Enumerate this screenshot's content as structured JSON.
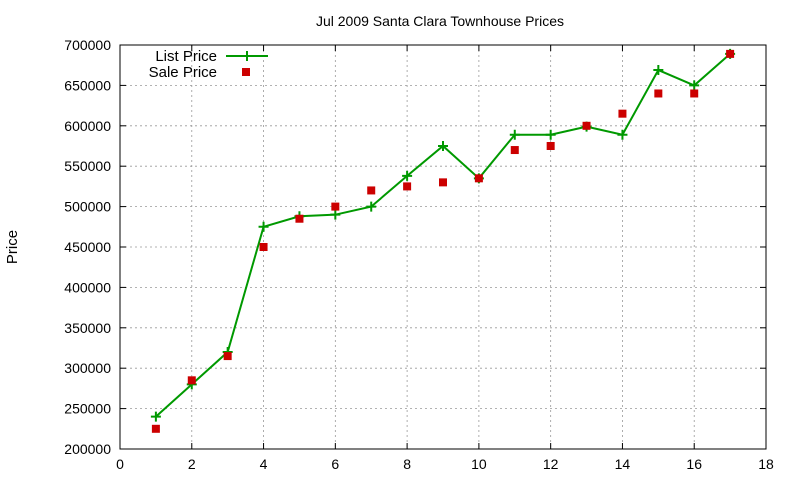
{
  "chart_data": {
    "type": "line",
    "title": "Jul 2009 Santa Clara Townhouse Prices",
    "xlabel": "",
    "ylabel": "Price",
    "xlim": [
      0,
      18
    ],
    "ylim": [
      200000,
      700000
    ],
    "x_ticks": [
      0,
      2,
      4,
      6,
      8,
      10,
      12,
      14,
      16,
      18
    ],
    "y_ticks": [
      200000,
      250000,
      300000,
      350000,
      400000,
      450000,
      500000,
      550000,
      600000,
      650000,
      700000
    ],
    "grid": true,
    "legend_position": "top-left",
    "series": [
      {
        "name": "List Price",
        "style": "line-with-plus-markers",
        "color": "#009900",
        "x": [
          1,
          2,
          3,
          4,
          5,
          6,
          7,
          8,
          9,
          10,
          11,
          12,
          13,
          14,
          15,
          16,
          17
        ],
        "y": [
          240000,
          280000,
          320000,
          475000,
          488000,
          490000,
          500000,
          538000,
          575000,
          535000,
          589000,
          589000,
          599000,
          589000,
          669000,
          650000,
          689000
        ]
      },
      {
        "name": "Sale Price",
        "style": "square-markers",
        "color": "#cc0000",
        "x": [
          1,
          2,
          3,
          4,
          5,
          6,
          7,
          8,
          9,
          10,
          11,
          12,
          13,
          14,
          15,
          16,
          17
        ],
        "y": [
          225000,
          285000,
          315000,
          450000,
          485000,
          500000,
          520000,
          525000,
          530000,
          535000,
          570000,
          575000,
          600000,
          615000,
          640000,
          640000,
          689000
        ]
      }
    ]
  }
}
